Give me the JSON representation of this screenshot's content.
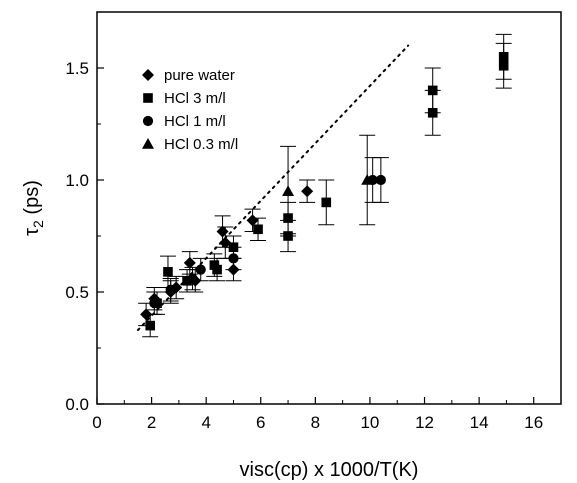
{
  "chart_data": {
    "type": "scatter",
    "xlabel": "visc(cp) x 1000/T(K)",
    "ylabel_main": "τ",
    "ylabel_sub": "2",
    "ylabel_rest": " (ps)",
    "xlim": [
      0,
      17
    ],
    "ylim": [
      0.0,
      1.75
    ],
    "x_ticks": [
      0,
      2,
      4,
      6,
      8,
      10,
      12,
      14,
      16
    ],
    "y_ticks": [
      0.0,
      0.5,
      1.0,
      1.5
    ],
    "x_tick_labels": [
      "0",
      "2",
      "4",
      "6",
      "8",
      "10",
      "12",
      "14",
      "16"
    ],
    "y_tick_labels": [
      "0.0",
      "0.5",
      "1.0",
      "1.5"
    ],
    "legend_placement": "top-left",
    "fit_line": {
      "style": "dotted",
      "x": [
        1.5,
        11.4
      ],
      "y": [
        0.33,
        1.6
      ]
    },
    "series": [
      {
        "name": "pure water",
        "marker": "diamond",
        "points": [
          {
            "x": 1.8,
            "y": 0.4,
            "err": 0.05
          },
          {
            "x": 2.1,
            "y": 0.47,
            "err": 0.05
          },
          {
            "x": 2.7,
            "y": 0.5,
            "err": 0.05
          },
          {
            "x": 2.9,
            "y": 0.52,
            "err": 0.05
          },
          {
            "x": 3.4,
            "y": 0.63,
            "err": 0.05
          },
          {
            "x": 3.6,
            "y": 0.55,
            "err": 0.05
          },
          {
            "x": 4.6,
            "y": 0.77,
            "err": 0.07
          },
          {
            "x": 4.7,
            "y": 0.72,
            "err": 0.07
          },
          {
            "x": 5.0,
            "y": 0.6,
            "err": 0.05
          },
          {
            "x": 5.7,
            "y": 0.82,
            "err": 0.05
          },
          {
            "x": 7.7,
            "y": 0.95,
            "err": 0.05
          }
        ]
      },
      {
        "name": "HCl 3 m/l",
        "marker": "square",
        "points": [
          {
            "x": 1.95,
            "y": 0.35,
            "err": 0.05
          },
          {
            "x": 2.2,
            "y": 0.45,
            "err": 0.05
          },
          {
            "x": 2.6,
            "y": 0.59,
            "err": 0.07
          },
          {
            "x": 3.3,
            "y": 0.55,
            "err": 0.05
          },
          {
            "x": 4.3,
            "y": 0.62,
            "err": 0.05
          },
          {
            "x": 4.4,
            "y": 0.6,
            "err": 0.05
          },
          {
            "x": 5.0,
            "y": 0.7,
            "err": 0.05
          },
          {
            "x": 5.9,
            "y": 0.78,
            "err": 0.05
          },
          {
            "x": 7.0,
            "y": 0.83,
            "err": 0.07
          },
          {
            "x": 7.0,
            "y": 0.75,
            "err": 0.07
          },
          {
            "x": 8.4,
            "y": 0.9,
            "err": 0.1
          },
          {
            "x": 12.3,
            "y": 1.4,
            "err": 0.1
          },
          {
            "x": 12.3,
            "y": 1.3,
            "err": 0.1
          },
          {
            "x": 14.9,
            "y": 1.55,
            "err": 0.1
          },
          {
            "x": 14.9,
            "y": 1.51,
            "err": 0.1
          }
        ]
      },
      {
        "name": "HCl 1 m/l",
        "marker": "circle",
        "points": [
          {
            "x": 2.1,
            "y": 0.45,
            "err": 0.05
          },
          {
            "x": 2.7,
            "y": 0.51,
            "err": 0.05
          },
          {
            "x": 3.5,
            "y": 0.56,
            "err": 0.05
          },
          {
            "x": 3.8,
            "y": 0.6,
            "err": 0.05
          },
          {
            "x": 5.0,
            "y": 0.65,
            "err": 0.05
          },
          {
            "x": 10.1,
            "y": 1.0,
            "err": 0.1
          },
          {
            "x": 10.4,
            "y": 1.0,
            "err": 0.1
          }
        ]
      },
      {
        "name": "HCl 0.3 m/l",
        "marker": "triangle",
        "points": [
          {
            "x": 7.0,
            "y": 0.95,
            "err": 0.2
          },
          {
            "x": 9.9,
            "y": 1.0,
            "err": 0.2
          }
        ]
      }
    ]
  }
}
